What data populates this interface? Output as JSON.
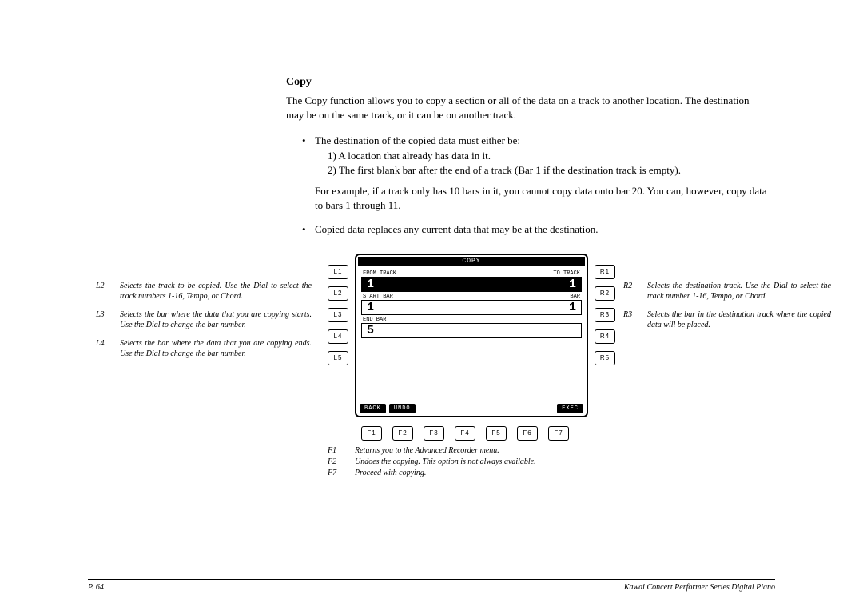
{
  "title": "Copy",
  "intro": "The Copy function allows you to copy a section or all of the data on a track to another location. The destination may be on the same track, or it can be on another track.",
  "bullet1_lead": "The destination of the copied data must either be:",
  "bullet1_item1": "1)  A location that already has data in it.",
  "bullet1_item2": "2)  The first blank bar after the end of a track (Bar 1 if the destination track is empty).",
  "example": "For example, if a track only has 10 bars in it, you cannot copy data onto bar 20.  You can, however, copy data to bars 1 through 11.",
  "bullet2": "Copied data replaces any current data that may be at the destination.",
  "leftNotes": [
    {
      "k": "L2",
      "t": "Selects the track to be copied. Use the Dial to select the track numbers 1-16, Tempo, or Chord."
    },
    {
      "k": "L3",
      "t": "Selects the bar where the data that you are copying starts.  Use the Dial to change the bar number."
    },
    {
      "k": "L4",
      "t": "Selects the bar where the data that you are copying ends.  Use the Dial to change the bar number."
    }
  ],
  "rightNotes": [
    {
      "k": "R2",
      "t": "Selects the destination track.  Use the Dial to select the track number 1-16, Tempo, or Chord."
    },
    {
      "k": "R3",
      "t": "Selects the bar in the destination track where the copied data will be placed."
    }
  ],
  "bottomNotes": [
    {
      "k": "F1",
      "t": "Returns you to the Advanced Recorder menu."
    },
    {
      "k": "F2",
      "t": "Undoes the copying.  This option is not always available."
    },
    {
      "k": "F7",
      "t": "Proceed with copying."
    }
  ],
  "lkeys": [
    "L1",
    "L2",
    "L3",
    "L4",
    "L5"
  ],
  "rkeys": [
    "R1",
    "R2",
    "R3",
    "R4",
    "R5"
  ],
  "fkeys": [
    "F1",
    "F2",
    "F3",
    "F4",
    "F5",
    "F6",
    "F7"
  ],
  "screen": {
    "title": "COPY",
    "row1": {
      "lLabel": "FROM TRACK",
      "rLabel": "TO TRACK",
      "lVal": "1",
      "rVal": "1"
    },
    "row2": {
      "lLabel": "START BAR",
      "rLabel": "BAR",
      "lVal": "1",
      "rVal": "1"
    },
    "row3": {
      "lLabel": "END BAR",
      "lVal": "5"
    },
    "soft": {
      "back": "BACK",
      "undo": "UNDO",
      "exec": "EXEC"
    }
  },
  "footer": {
    "page": "P. 64",
    "product": "Kawai Concert Performer Series Digital Piano"
  }
}
